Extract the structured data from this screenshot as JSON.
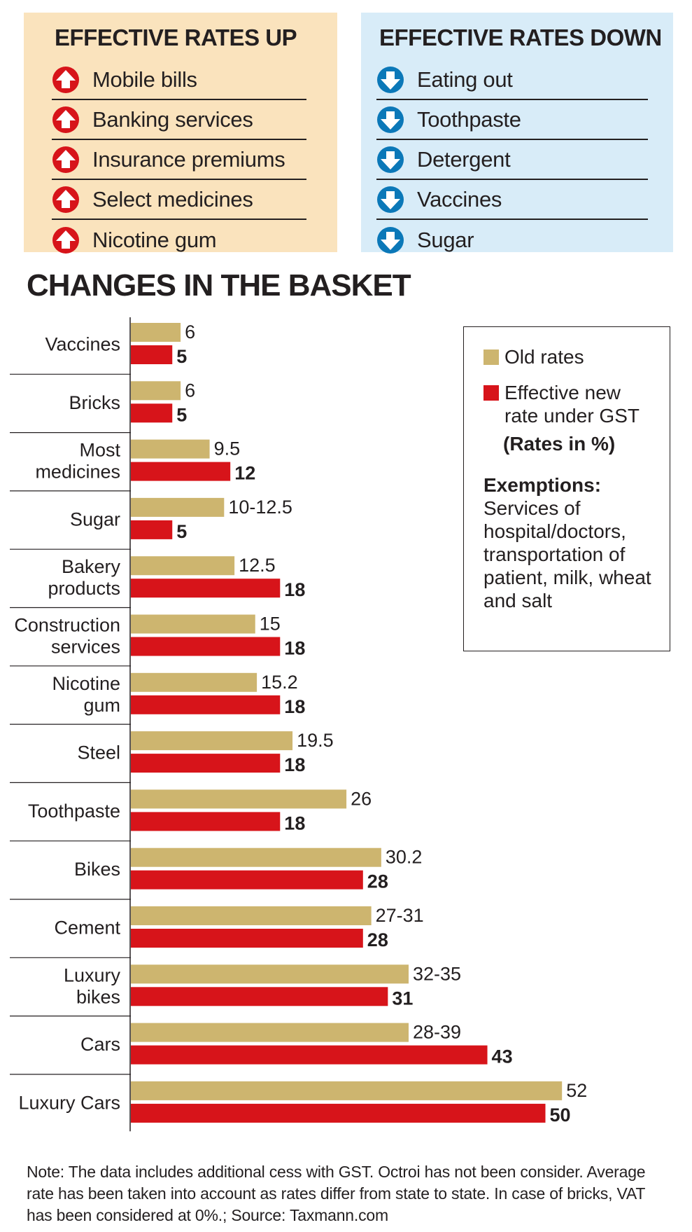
{
  "panels": {
    "up": {
      "title": "EFFECTIVE RATES UP",
      "icon": "arrow-up-icon",
      "color": "#d7141a",
      "items": [
        "Mobile bills",
        "Banking services",
        "Insurance premiums",
        "Select medicines",
        "Nicotine gum"
      ]
    },
    "down": {
      "title": "EFFECTIVE RATES DOWN",
      "icon": "arrow-down-icon",
      "color": "#0b78b8",
      "items": [
        "Eating out",
        "Toothpaste",
        "Detergent",
        "Vaccines",
        "Sugar"
      ]
    }
  },
  "legend": {
    "old_label": "Old rates",
    "new_label": "Effective new rate under GST",
    "units": "(Rates in %)",
    "exemptions_title": "Exemptions:",
    "exemptions_text": "Services of hospital/doctors, transportation of patient, milk, wheat and salt"
  },
  "note": "Note: The data includes additional cess with GST. Octroi has not been consider. Average rate has been taken into account as rates differ from state to state. In case of bricks, VAT has been considered at 0%.; Source: Taxmann.com",
  "chart_data": {
    "type": "bar",
    "orientation": "horizontal",
    "title": "CHANGES IN THE BASKET",
    "categories": [
      "Vaccines",
      "Bricks",
      "Most medicines",
      "Sugar",
      "Bakery products",
      "Construction services",
      "Nicotine gum",
      "Steel",
      "Toothpaste",
      "Bikes",
      "Cement",
      "Luxury bikes",
      "Cars",
      "Luxury Cars"
    ],
    "category_lines": [
      [
        "Vaccines"
      ],
      [
        "Bricks"
      ],
      [
        "Most",
        "medicines"
      ],
      [
        "Sugar"
      ],
      [
        "Bakery",
        "products"
      ],
      [
        "Construction",
        "services"
      ],
      [
        "Nicotine",
        "gum"
      ],
      [
        "Steel"
      ],
      [
        "Toothpaste"
      ],
      [
        "Bikes"
      ],
      [
        "Cement"
      ],
      [
        "Luxury",
        "bikes"
      ],
      [
        "Cars"
      ],
      [
        "Luxury Cars"
      ]
    ],
    "series": [
      {
        "name": "Old rates",
        "color": "#cdb56f",
        "values": [
          6,
          6,
          9.5,
          11.25,
          12.5,
          15,
          15.2,
          19.5,
          26,
          30.2,
          29,
          33.5,
          33.5,
          52
        ],
        "labels": [
          "6",
          "6",
          "9.5",
          "10-12.5",
          "12.5",
          "15",
          "15.2",
          "19.5",
          "26",
          "30.2",
          "27-31",
          "32-35",
          "28-39",
          "52"
        ]
      },
      {
        "name": "Effective new rate under GST",
        "color": "#d7141a",
        "values": [
          5,
          5,
          12,
          5,
          18,
          18,
          18,
          18,
          18,
          28,
          28,
          31,
          43,
          50
        ],
        "labels": [
          "5",
          "5",
          "12",
          "5",
          "18",
          "18",
          "18",
          "18",
          "18",
          "28",
          "28",
          "31",
          "43",
          "50"
        ]
      }
    ],
    "xlim": [
      0,
      52
    ],
    "grid": false,
    "legend_position": "right"
  }
}
